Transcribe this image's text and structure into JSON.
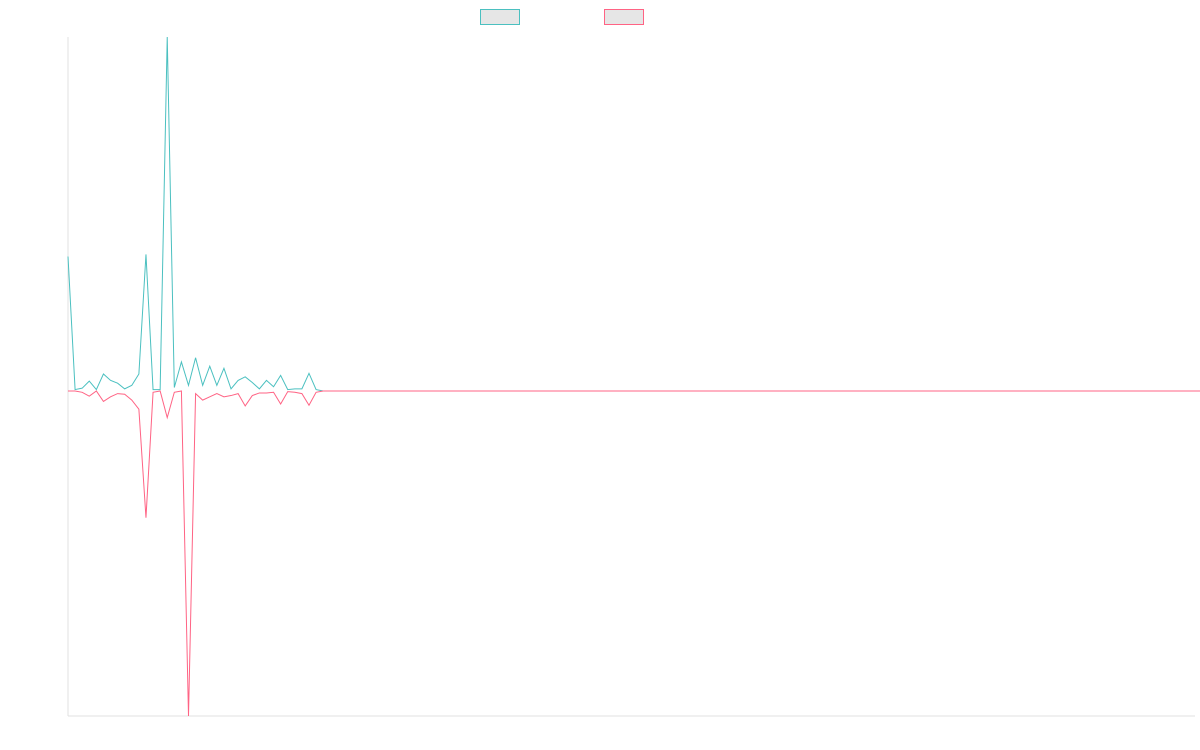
{
  "legend": {
    "items": [
      {
        "label": "",
        "color": "#4bc0c0"
      },
      {
        "label": "",
        "color": "#ff6384"
      }
    ]
  },
  "chart_data": {
    "type": "line",
    "title": "",
    "xlabel": "",
    "ylabel": "",
    "grid": false,
    "legend_position": "top-center",
    "x_count": 160,
    "ylim": [
      -1,
      1
    ],
    "series": [
      {
        "color": "#4bc0c0",
        "values": [
          0.38,
          0.004,
          0.008,
          0.028,
          0.004,
          0.048,
          0.03,
          0.022,
          0.006,
          0.016,
          0.048,
          0.386,
          0.004,
          0.004,
          1.0,
          0.01,
          0.082,
          0.016,
          0.094,
          0.016,
          0.07,
          0.016,
          0.064,
          0.006,
          0.03,
          0.04,
          0.024,
          0.006,
          0.03,
          0.012,
          0.044,
          0.004,
          0.006,
          0.006,
          0.05,
          0.004,
          0,
          0,
          0,
          0,
          0,
          0,
          0,
          0,
          0,
          0,
          0,
          0,
          0,
          0,
          0,
          0,
          0,
          0,
          0,
          0,
          0,
          0,
          0,
          0,
          0,
          0,
          0,
          0,
          0,
          0,
          0,
          0,
          0,
          0,
          0,
          0,
          0,
          0,
          0,
          0,
          0,
          0,
          0,
          0,
          0,
          0,
          0,
          0,
          0,
          0,
          0,
          0,
          0,
          0,
          0,
          0,
          0,
          0,
          0,
          0,
          0,
          0,
          0,
          0,
          0,
          0,
          0,
          0,
          0,
          0,
          0,
          0,
          0,
          0,
          0,
          0,
          0,
          0,
          0,
          0,
          0,
          0,
          0,
          0,
          0,
          0,
          0,
          0,
          0,
          0,
          0,
          0,
          0,
          0,
          0,
          0,
          0,
          0,
          0,
          0,
          0,
          0,
          0,
          0,
          0,
          0,
          0,
          0,
          0,
          0,
          0,
          0,
          0,
          0,
          0,
          0,
          0,
          0,
          0,
          0,
          0,
          0,
          0,
          0
        ]
      },
      {
        "color": "#ff6384",
        "values": [
          0,
          0,
          -0.004,
          -0.016,
          0,
          -0.032,
          -0.018,
          -0.008,
          -0.01,
          -0.028,
          -0.056,
          -0.39,
          -0.004,
          0,
          -0.082,
          -0.004,
          0,
          -1.0,
          -0.008,
          -0.028,
          -0.018,
          -0.008,
          -0.018,
          -0.014,
          -0.008,
          -0.046,
          -0.014,
          -0.006,
          -0.006,
          -0.004,
          -0.04,
          -0.002,
          -0.004,
          -0.008,
          -0.044,
          -0.004,
          0,
          0,
          0,
          0,
          0,
          0,
          0,
          0,
          0,
          0,
          0,
          0,
          0,
          0,
          0,
          0,
          0,
          0,
          0,
          0,
          0,
          0,
          0,
          0,
          0,
          0,
          0,
          0,
          0,
          0,
          0,
          0,
          0,
          0,
          0,
          0,
          0,
          0,
          0,
          0,
          0,
          0,
          0,
          0,
          0,
          0,
          0,
          0,
          0,
          0,
          0,
          0,
          0,
          0,
          0,
          0,
          0,
          0,
          0,
          0,
          0,
          0,
          0,
          0,
          0,
          0,
          0,
          0,
          0,
          0,
          0,
          0,
          0,
          0,
          0,
          0,
          0,
          0,
          0,
          0,
          0,
          0,
          0,
          0,
          0,
          0,
          0,
          0,
          0,
          0,
          0,
          0,
          0,
          0,
          0,
          0,
          0,
          0,
          0,
          0,
          0,
          0,
          0,
          0,
          0,
          0,
          0,
          0,
          0,
          0,
          0,
          0,
          0,
          0,
          0,
          0,
          0,
          0,
          0,
          0,
          0,
          0,
          0,
          0,
          0,
          0
        ]
      }
    ]
  }
}
